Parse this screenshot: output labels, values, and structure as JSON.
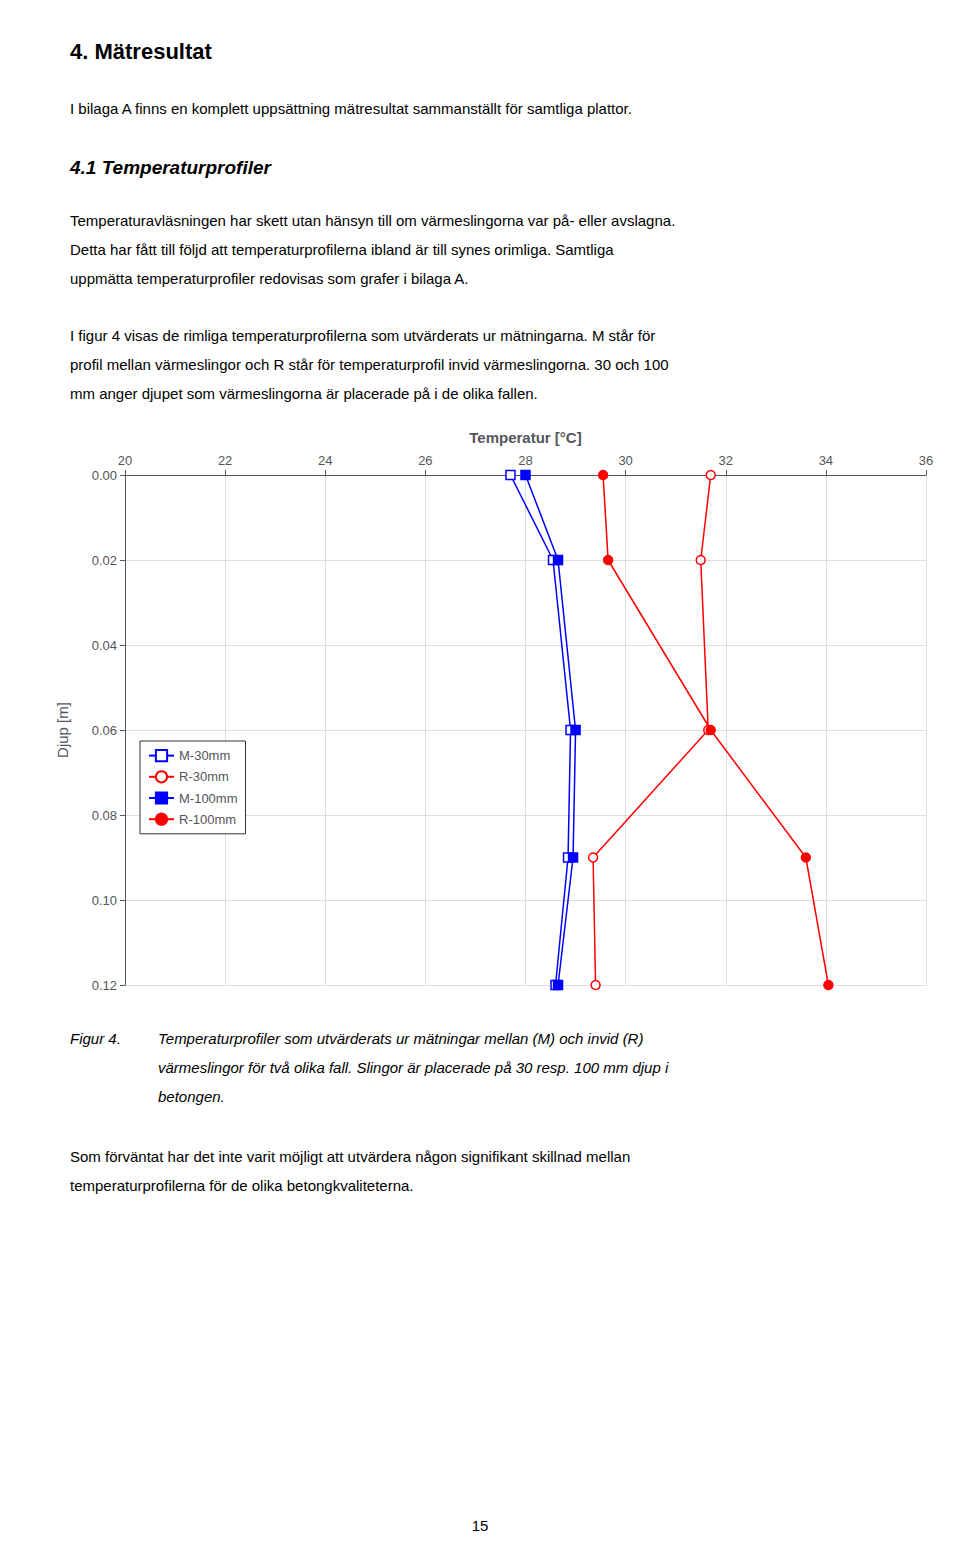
{
  "chart_data": {
    "type": "line",
    "xlabel": "Temperatur [°C]",
    "ylabel": "Djup [m]",
    "xlim": [
      20,
      36
    ],
    "xticks": [
      20,
      22,
      24,
      26,
      28,
      30,
      32,
      34,
      36
    ],
    "ylim": [
      0.12,
      0.0
    ],
    "yticks": [
      {
        "value": 0.0,
        "label": "0.00"
      },
      {
        "value": 0.02,
        "label": "0.02"
      },
      {
        "value": 0.04,
        "label": "0.04"
      },
      {
        "value": 0.06,
        "label": "0.06"
      },
      {
        "value": 0.08,
        "label": "0.08"
      },
      {
        "value": 0.1,
        "label": "0.10"
      },
      {
        "value": 0.12,
        "label": "0.12"
      }
    ],
    "grid": true,
    "legend": "left",
    "series": [
      {
        "name": "M-30mm",
        "color": "#0000FF",
        "marker": "square_open",
        "x": [
          27.7,
          28.55,
          28.9,
          28.85,
          28.6
        ],
        "values": [
          0.0,
          0.02,
          0.06,
          0.09,
          0.12
        ]
      },
      {
        "name": "R-30mm",
        "color": "#FF0000",
        "marker": "circle_open",
        "x": [
          31.7,
          31.5,
          31.65,
          29.35,
          29.4
        ],
        "values": [
          0.0,
          0.02,
          0.06,
          0.09,
          0.12
        ]
      },
      {
        "name": "M-100mm",
        "color": "#0000FF",
        "marker": "square",
        "x": [
          28.0,
          28.65,
          29.0,
          28.95,
          28.65
        ],
        "values": [
          0.0,
          0.02,
          0.06,
          0.09,
          0.12
        ]
      },
      {
        "name": "R-100mm",
        "color": "#FF0000",
        "marker": "circle",
        "x": [
          29.55,
          29.65,
          31.7,
          33.6,
          34.05
        ],
        "values": [
          0.0,
          0.02,
          0.06,
          0.09,
          0.12
        ]
      }
    ]
  },
  "page_texts": {
    "heading": "4. Mätresultat",
    "para1": "I bilaga A finns en komplett uppsättning mätresultat sammanställt för samtliga plattor.",
    "subheading": "4.1 Temperaturprofiler",
    "para2_l1": "Temperaturavläsningen har skett utan hänsyn till om värmeslingorna var på- eller avslagna.",
    "para2_l2": "Detta har fått till följd att temperaturprofilerna ibland är till synes orimliga. Samtliga",
    "para2_l3": "uppmätta temperaturprofiler redovisas som grafer i bilaga A.",
    "para3_l1": "I figur 4 visas de rimliga temperaturprofilerna som utvärderats ur mätningarna. M står för",
    "para3_l2": "profil mellan värmeslingor och R står för temperaturprofil invid värmeslingorna. 30 och 100",
    "para3_l3": "mm anger djupet som värmeslingorna är placerade på i de olika fallen.",
    "figcap_label": "Figur 4.",
    "figcap_l1": "Temperaturprofiler som utvärderats ur mätningar mellan (M) och invid (R)",
    "figcap_l2": "värmeslingor för två olika fall. Slingor är placerade på 30 resp. 100 mm djup i",
    "figcap_l3": "betongen.",
    "para4_l1": "Som förväntat har det inte varit möjligt att utvärdera någon signifikant skillnad mellan",
    "para4_l2": "temperaturprofilerna för de olika betongkvaliteterna.",
    "page_number": "15"
  }
}
